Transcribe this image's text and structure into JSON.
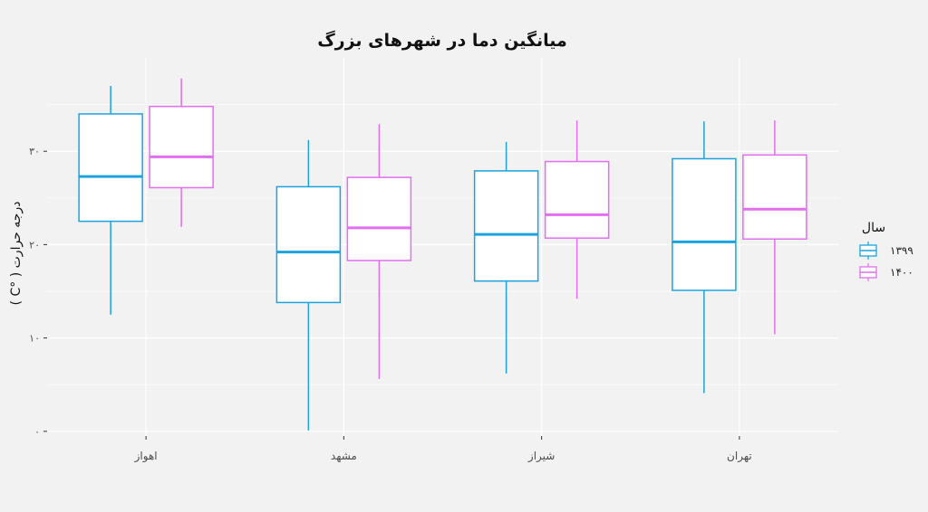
{
  "chart_data": {
    "type": "box",
    "title": "میانگین دما در شهرهای بزرگ",
    "xlabel": "",
    "ylabel": "درجه حرارت ( °C )",
    "ylim": [
      -0.5,
      40
    ],
    "yticks": [
      0,
      10,
      20,
      30
    ],
    "ytick_labels": [
      "۰",
      "۱۰",
      "۲۰",
      "۳۰"
    ],
    "categories": [
      "اهواز",
      "مشهد",
      "شیراز",
      "تهران"
    ],
    "legend": {
      "title": "سال",
      "position": "right"
    },
    "grid": true,
    "series": [
      {
        "name": "۱۳۹۹",
        "color": "#1ba3e0",
        "boxes": [
          {
            "min": 12.5,
            "q1": 22.5,
            "median": 27.3,
            "q3": 34.0,
            "max": 37.0
          },
          {
            "min": 0.1,
            "q1": 13.8,
            "median": 19.2,
            "q3": 26.2,
            "max": 31.2
          },
          {
            "min": 6.2,
            "q1": 16.1,
            "median": 21.1,
            "q3": 27.9,
            "max": 31.0
          },
          {
            "min": 4.1,
            "q1": 15.1,
            "median": 20.3,
            "q3": 29.2,
            "max": 33.2
          }
        ]
      },
      {
        "name": "۱۴۰۰",
        "color": "#e26ef0",
        "boxes": [
          {
            "min": 21.9,
            "q1": 26.1,
            "median": 29.4,
            "q3": 34.8,
            "max": 37.8
          },
          {
            "min": 5.6,
            "q1": 18.3,
            "median": 21.8,
            "q3": 27.2,
            "max": 32.9
          },
          {
            "min": 14.2,
            "q1": 20.7,
            "median": 23.2,
            "q3": 28.9,
            "max": 33.3
          },
          {
            "min": 10.4,
            "q1": 20.6,
            "median": 23.8,
            "q3": 29.6,
            "max": 33.3
          }
        ]
      }
    ]
  }
}
